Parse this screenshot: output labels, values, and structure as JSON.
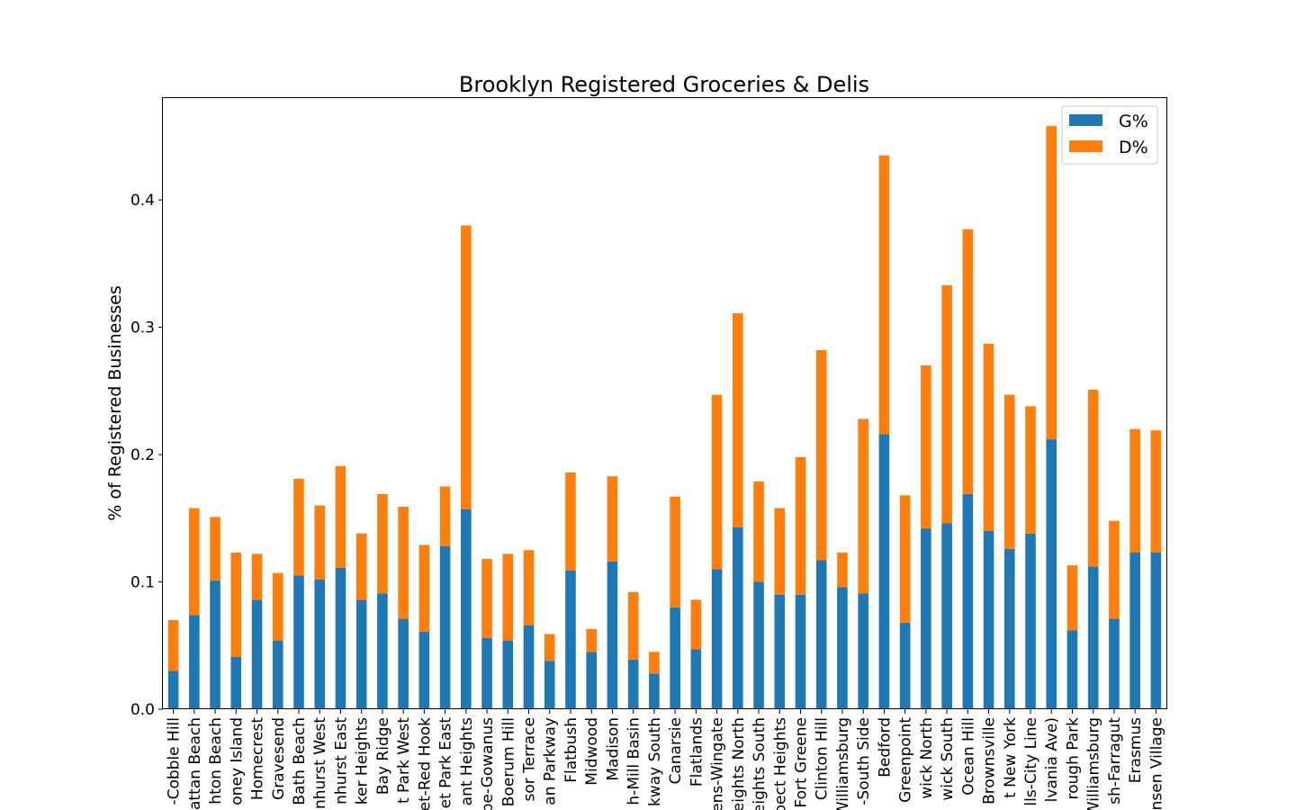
{
  "chart_data": {
    "type": "bar",
    "stacked": true,
    "title": "Brooklyn Registered Groceries & Delis",
    "xlabel": "",
    "ylabel": "% of Registered Businesses",
    "ylim": [
      0,
      0.48
    ],
    "yticks": [
      0.0,
      0.1,
      0.2,
      0.3,
      0.4
    ],
    "ytick_labels": [
      "0.0",
      "0.1",
      "0.2",
      "0.3",
      "0.4"
    ],
    "grid": false,
    "legend_position": "top-right",
    "categories": [
      "-Cobble Hill",
      "attan Beach",
      "hton Beach",
      "oney Island",
      "Homecrest",
      "Gravesend",
      "Bath Beach",
      "nhurst West",
      "nhurst East",
      "ker Heights",
      "Bay Ridge",
      "t Park West",
      "et-Red Hook",
      "et Park East",
      "ant Heights",
      "pe-Gowanus",
      "Boerum Hill",
      "sor Terrace",
      "an Parkway",
      "Flatbush",
      "Midwood",
      "Madison",
      "h-Mill Basin",
      "kway South",
      "Canarsie",
      "Flatlands",
      "ens-Wingate",
      "eights North",
      "eights South",
      "pect Heights",
      "Fort Greene",
      "Clinton Hill",
      "Williamsburg",
      "-South Side",
      "Bedford",
      "Greenpoint",
      "wick North",
      "wick South",
      "Ocean Hill",
      "Brownsville",
      "t New York",
      "lls-City Line",
      "lvania Ave)",
      "rough Park",
      "Williamsburg",
      "sh-Farragut",
      "Erasmus",
      "nsen Village"
    ],
    "series": [
      {
        "name": "G%",
        "color": "#1f77b4",
        "values": [
          0.03,
          0.074,
          0.101,
          0.041,
          0.086,
          0.054,
          0.105,
          0.102,
          0.111,
          0.086,
          0.091,
          0.071,
          0.061,
          0.128,
          0.157,
          0.056,
          0.054,
          0.066,
          0.038,
          0.109,
          0.045,
          0.116,
          0.039,
          0.028,
          0.08,
          0.047,
          0.11,
          0.143,
          0.1,
          0.09,
          0.09,
          0.117,
          0.096,
          0.091,
          0.216,
          0.068,
          0.142,
          0.146,
          0.169,
          0.14,
          0.126,
          0.138,
          0.212,
          0.062,
          0.112,
          0.071,
          0.123,
          0.123
        ]
      },
      {
        "name": "D%",
        "color": "#ff7f0e",
        "values": [
          0.04,
          0.084,
          0.05,
          0.082,
          0.036,
          0.053,
          0.076,
          0.058,
          0.08,
          0.052,
          0.078,
          0.088,
          0.068,
          0.047,
          0.223,
          0.062,
          0.068,
          0.059,
          0.021,
          0.077,
          0.018,
          0.067,
          0.053,
          0.017,
          0.087,
          0.039,
          0.137,
          0.168,
          0.079,
          0.068,
          0.108,
          0.165,
          0.027,
          0.137,
          0.219,
          0.1,
          0.128,
          0.187,
          0.208,
          0.147,
          0.121,
          0.1,
          0.246,
          0.051,
          0.139,
          0.077,
          0.097,
          0.096
        ]
      }
    ]
  }
}
